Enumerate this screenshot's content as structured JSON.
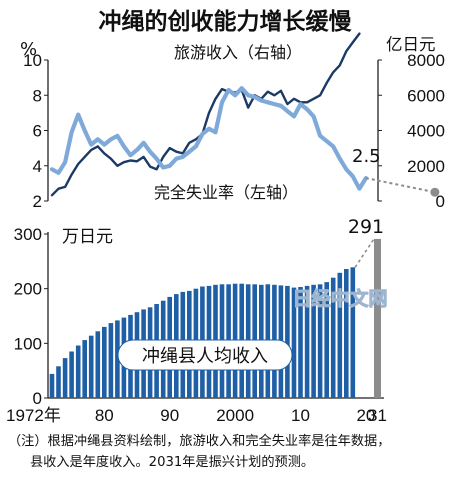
{
  "title": "冲绳的创收能力增长缓慢",
  "watermark": "日经中文网",
  "note_line1": "（注）根据冲绳县资料绘制，旅游收入和完全失业率是往年数据，",
  "note_line2": "县收入是年度收入。2031年是振兴计划的预测。",
  "colors": {
    "tourism_line": "#7fa9d9",
    "unemployment_line": "#1b3a66",
    "bars": "#1e5fa6",
    "forecast_bar": "#8c8c8c",
    "forecast_dot": "#8c8c8c"
  },
  "chart_data": [
    {
      "type": "line",
      "left_axis_unit": "%",
      "right_axis_unit": "亿日元",
      "left_ylim": [
        2,
        10
      ],
      "left_ticks": [
        2,
        4,
        6,
        8,
        10
      ],
      "right_ylim": [
        0,
        8000
      ],
      "right_ticks": [
        0,
        2000,
        4000,
        6000,
        8000
      ],
      "grid": false,
      "series": [
        {
          "name": "旅游收入（右轴）",
          "axis": "right",
          "x": [
            1972,
            1973,
            1974,
            1975,
            1976,
            1977,
            1978,
            1979,
            1980,
            1981,
            1982,
            1983,
            1984,
            1985,
            1986,
            1987,
            1988,
            1989,
            1990,
            1991,
            1992,
            1993,
            1994,
            1995,
            1996,
            1997,
            1998,
            1999,
            2000,
            2001,
            2002,
            2003,
            2004,
            2005,
            2006,
            2007,
            2008,
            2009,
            2010,
            2011,
            2012,
            2013,
            2014,
            2015,
            2016,
            2017,
            2018,
            2019
          ],
          "values": [
            330,
            700,
            800,
            1500,
            2100,
            2500,
            2900,
            3100,
            2700,
            2400,
            2000,
            2200,
            2300,
            2250,
            2500,
            1950,
            1800,
            2500,
            3000,
            2800,
            2700,
            3300,
            3500,
            3800,
            5000,
            5800,
            6350,
            6200,
            6150,
            6300,
            5300,
            6000,
            5800,
            6200,
            6000,
            6250,
            5500,
            5800,
            5600,
            5600,
            5800,
            6000,
            6700,
            7300,
            7700,
            8500,
            9000,
            9500
          ]
        },
        {
          "name": "完全失业率（左轴）",
          "axis": "left",
          "x": [
            1972,
            1973,
            1974,
            1975,
            1976,
            1977,
            1978,
            1979,
            1980,
            1981,
            1982,
            1983,
            1984,
            1985,
            1986,
            1987,
            1988,
            1989,
            1990,
            1991,
            1992,
            1993,
            1994,
            1995,
            1996,
            1997,
            1998,
            1999,
            2000,
            2001,
            2002,
            2003,
            2004,
            2005,
            2006,
            2007,
            2008,
            2009,
            2010,
            2011,
            2012,
            2013,
            2014,
            2015,
            2016,
            2017,
            2018,
            2019,
            2020
          ],
          "values": [
            3.8,
            3.6,
            4.2,
            5.9,
            6.9,
            6.0,
            5.2,
            5.5,
            5.2,
            5.5,
            5.7,
            5.1,
            4.6,
            4.9,
            5.3,
            4.8,
            4.4,
            3.9,
            4.0,
            4.4,
            4.5,
            4.8,
            5.1,
            5.8,
            6.1,
            5.9,
            7.6,
            8.3,
            8.0,
            8.4,
            8.0,
            7.9,
            7.7,
            7.6,
            7.5,
            7.4,
            7.1,
            6.8,
            7.5,
            7.2,
            6.8,
            5.7,
            5.4,
            5.1,
            4.4,
            3.8,
            3.4,
            2.7,
            3.3
          ]
        }
      ],
      "annotations": [
        {
          "text": "2.5",
          "x": 2031,
          "value": 2.5
        }
      ]
    },
    {
      "type": "bar",
      "title": "冲绳县人均收入",
      "unit": "万日元",
      "ylim": [
        0,
        300
      ],
      "y_ticks": [
        0,
        100,
        200,
        300
      ],
      "x_tick_labels": [
        "1972年",
        "80",
        "90",
        "2000",
        "10",
        "20",
        "31"
      ],
      "x_tick_years": [
        1972,
        1980,
        1990,
        2000,
        2010,
        2020,
        2031
      ],
      "categories": [
        1972,
        1973,
        1974,
        1975,
        1976,
        1977,
        1978,
        1979,
        1980,
        1981,
        1982,
        1983,
        1984,
        1985,
        1986,
        1987,
        1988,
        1989,
        1990,
        1991,
        1992,
        1993,
        1994,
        1995,
        1996,
        1997,
        1998,
        1999,
        2000,
        2001,
        2002,
        2003,
        2004,
        2005,
        2006,
        2007,
        2008,
        2009,
        2010,
        2011,
        2012,
        2013,
        2014,
        2015,
        2016,
        2017,
        2018
      ],
      "values": [
        44,
        58,
        73,
        85,
        96,
        106,
        114,
        122,
        130,
        137,
        142,
        147,
        152,
        157,
        162,
        166,
        172,
        178,
        185,
        190,
        194,
        196,
        200,
        204,
        205,
        207,
        208,
        208,
        209,
        209,
        208,
        208,
        207,
        208,
        207,
        206,
        205,
        202,
        203,
        205,
        207,
        208,
        212,
        220,
        229,
        236,
        239
      ],
      "forecast": {
        "year": 2031,
        "value": 291,
        "label": "291"
      }
    }
  ]
}
